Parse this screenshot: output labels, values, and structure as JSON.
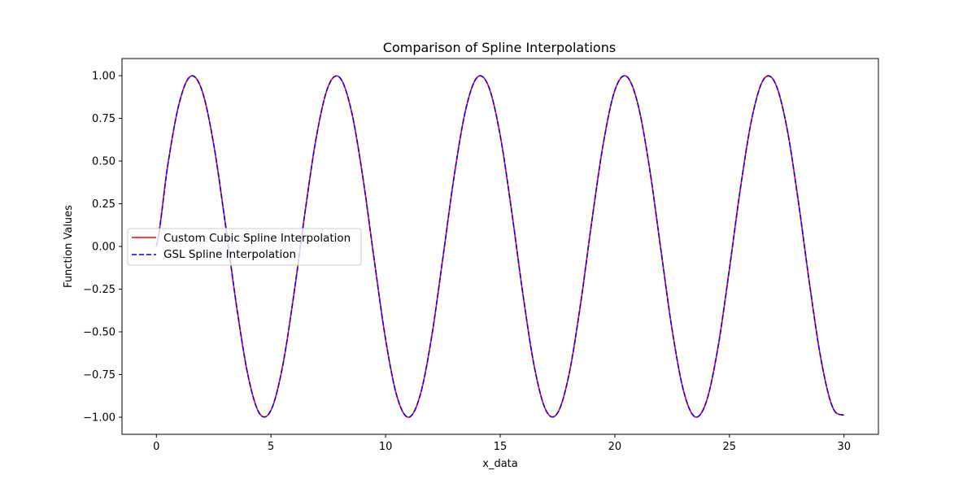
{
  "chart_data": {
    "type": "line",
    "title": "Comparison of Spline Interpolations",
    "xlabel": "x_data",
    "ylabel": "Function Values",
    "xlim": [
      -1.5,
      31.5
    ],
    "ylim": [
      -1.1,
      1.1
    ],
    "xticks": [
      0,
      5,
      10,
      15,
      20,
      25,
      30
    ],
    "xtick_labels": [
      "0",
      "5",
      "10",
      "15",
      "20",
      "25",
      "30"
    ],
    "yticks": [
      -1.0,
      -0.75,
      -0.5,
      -0.25,
      0.0,
      0.25,
      0.5,
      0.75,
      1.0
    ],
    "ytick_labels": [
      "−1.00",
      "−0.75",
      "−0.50",
      "−0.25",
      "0.00",
      "0.25",
      "0.50",
      "0.75",
      "1.00"
    ],
    "grid": false,
    "legend_position": "center-left",
    "series": [
      {
        "name": "Custom Cubic Spline Interpolation",
        "color": "#ff0000",
        "style": "solid",
        "x": [
          0.0,
          0.5,
          1.0,
          1.5,
          2.0,
          2.5,
          3.0,
          3.5,
          4.0,
          4.5,
          5.0,
          5.5,
          6.0,
          6.5,
          7.0,
          7.5,
          8.0,
          8.5,
          9.0,
          9.5,
          10.0,
          10.5,
          11.0,
          11.5,
          12.0,
          12.5,
          13.0,
          13.5,
          14.0,
          14.5,
          15.0,
          15.5,
          16.0,
          16.5,
          17.0,
          17.5,
          18.0,
          18.5,
          19.0,
          19.5,
          20.0,
          20.5,
          21.0,
          21.5,
          22.0,
          22.5,
          23.0,
          23.5,
          24.0,
          24.5,
          25.0,
          25.5,
          26.0,
          26.5,
          27.0,
          27.5,
          28.0,
          28.5,
          29.0,
          29.5,
          30.0
        ],
        "y": [
          0.0,
          0.479,
          0.841,
          0.997,
          0.909,
          0.598,
          0.141,
          -0.351,
          -0.757,
          -0.978,
          -0.959,
          -0.706,
          -0.279,
          0.215,
          0.657,
          0.938,
          0.989,
          0.798,
          0.412,
          -0.075,
          -0.544,
          -0.88,
          -1.0,
          -0.875,
          -0.537,
          -0.066,
          0.42,
          0.804,
          0.991,
          0.935,
          0.65,
          0.206,
          -0.288,
          -0.712,
          -0.961,
          -0.976,
          -0.751,
          -0.342,
          0.15,
          0.604,
          0.913,
          0.997,
          0.837,
          0.472,
          -0.009,
          -0.487,
          -0.846,
          -0.998,
          -0.906,
          -0.592,
          -0.132,
          0.359,
          0.763,
          0.98,
          0.956,
          0.7,
          0.271,
          -0.223,
          -0.664,
          -0.941,
          -0.988
        ]
      },
      {
        "name": "GSL Spline Interpolation",
        "color": "#0000ff",
        "style": "dashed",
        "x": [
          0.0,
          0.5,
          1.0,
          1.5,
          2.0,
          2.5,
          3.0,
          3.5,
          4.0,
          4.5,
          5.0,
          5.5,
          6.0,
          6.5,
          7.0,
          7.5,
          8.0,
          8.5,
          9.0,
          9.5,
          10.0,
          10.5,
          11.0,
          11.5,
          12.0,
          12.5,
          13.0,
          13.5,
          14.0,
          14.5,
          15.0,
          15.5,
          16.0,
          16.5,
          17.0,
          17.5,
          18.0,
          18.5,
          19.0,
          19.5,
          20.0,
          20.5,
          21.0,
          21.5,
          22.0,
          22.5,
          23.0,
          23.5,
          24.0,
          24.5,
          25.0,
          25.5,
          26.0,
          26.5,
          27.0,
          27.5,
          28.0,
          28.5,
          29.0,
          29.5,
          30.0
        ],
        "y": [
          0.0,
          0.479,
          0.841,
          0.997,
          0.909,
          0.598,
          0.141,
          -0.351,
          -0.757,
          -0.978,
          -0.959,
          -0.706,
          -0.279,
          0.215,
          0.657,
          0.938,
          0.989,
          0.798,
          0.412,
          -0.075,
          -0.544,
          -0.88,
          -1.0,
          -0.875,
          -0.537,
          -0.066,
          0.42,
          0.804,
          0.991,
          0.935,
          0.65,
          0.206,
          -0.288,
          -0.712,
          -0.961,
          -0.976,
          -0.751,
          -0.342,
          0.15,
          0.604,
          0.913,
          0.997,
          0.837,
          0.472,
          -0.009,
          -0.487,
          -0.846,
          -0.998,
          -0.906,
          -0.592,
          -0.132,
          0.359,
          0.763,
          0.98,
          0.956,
          0.7,
          0.271,
          -0.223,
          -0.664,
          -0.941,
          -0.988
        ]
      }
    ]
  }
}
